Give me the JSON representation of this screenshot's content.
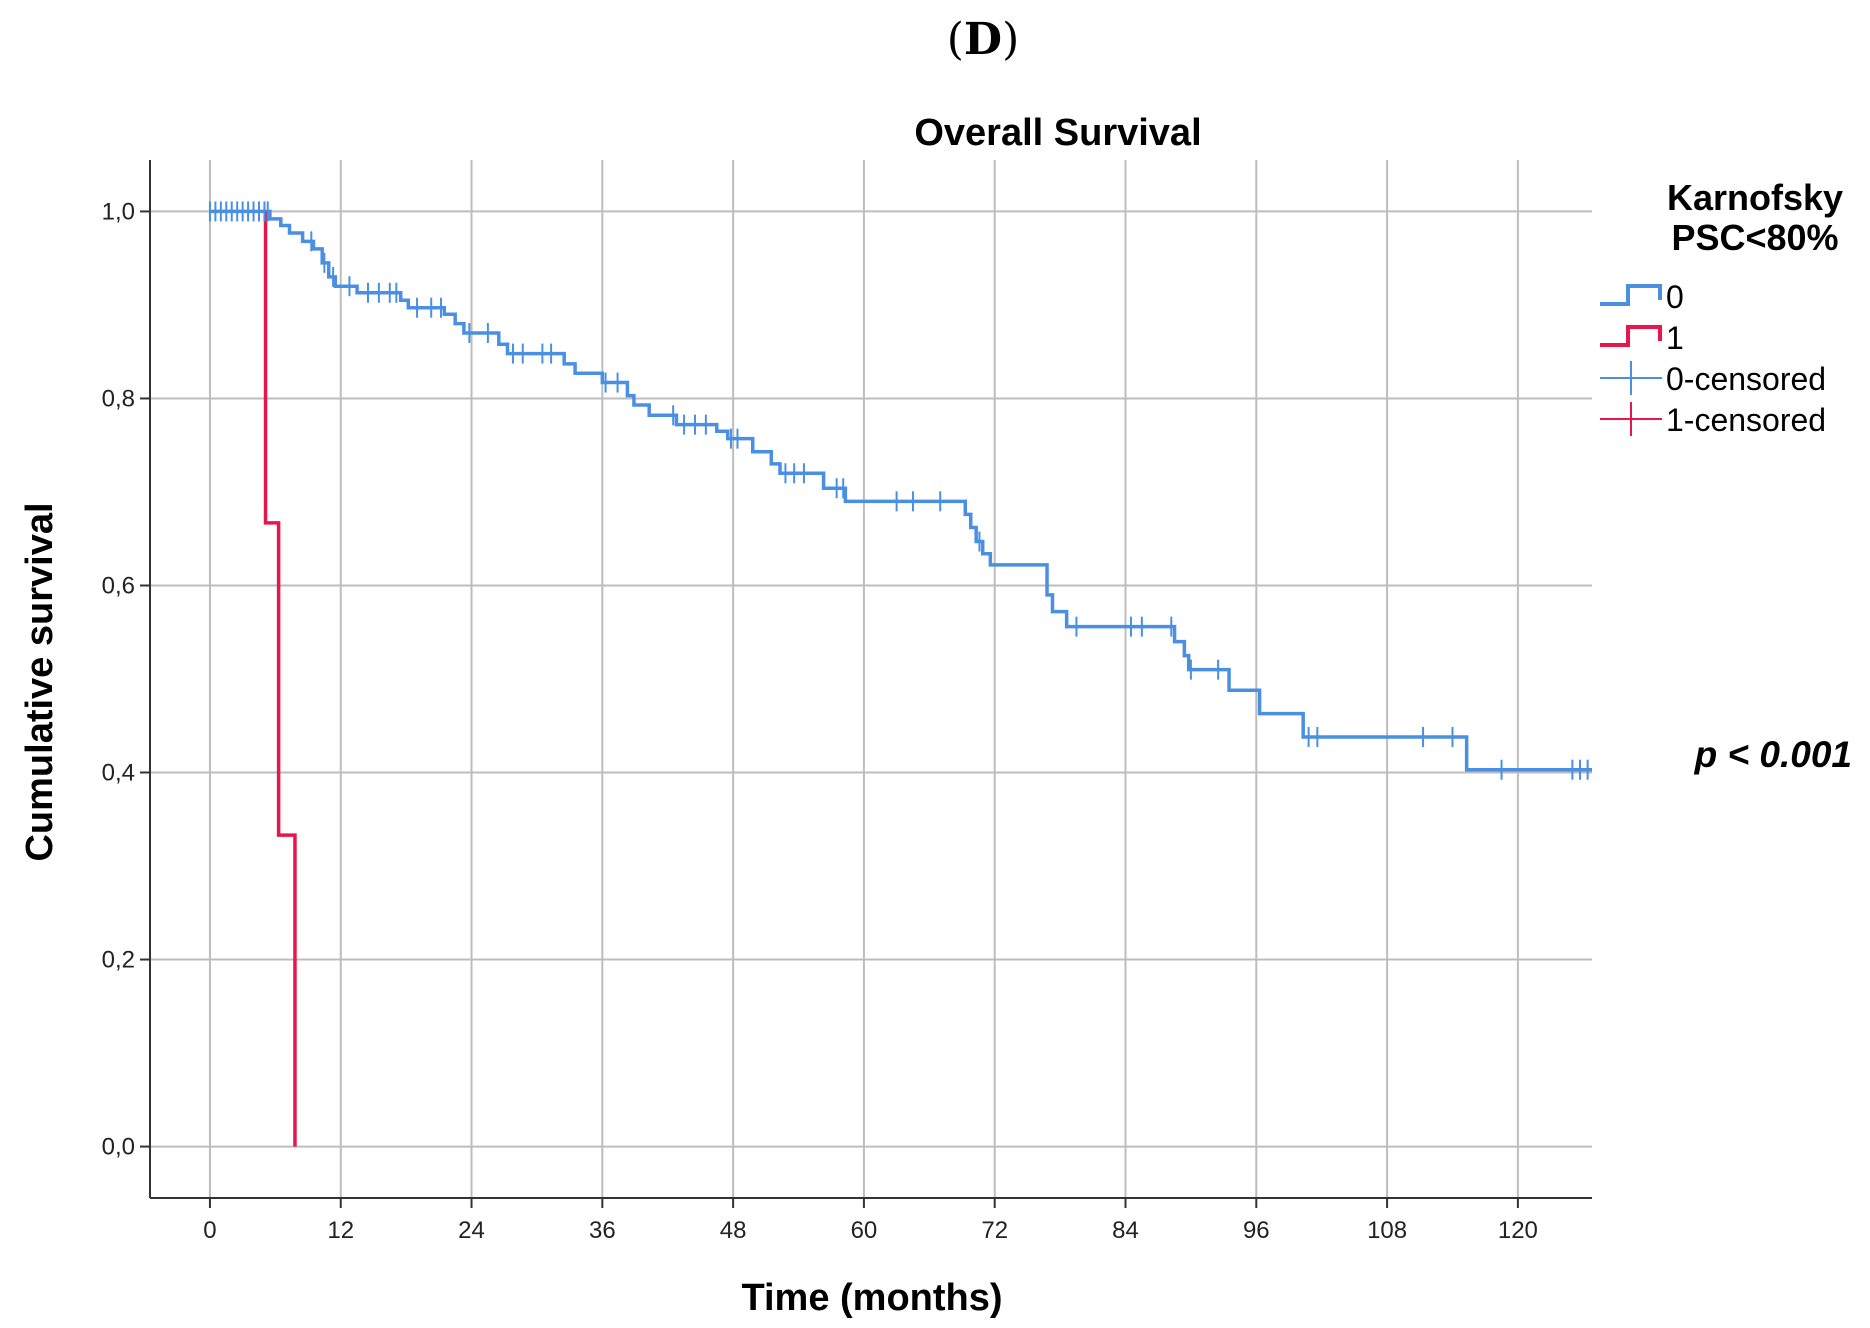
{
  "panel_label": {
    "open": "(",
    "letter": "D",
    "close": ")"
  },
  "chart_data": {
    "type": "line",
    "subtype": "kaplan-meier",
    "title": "Overall Survival",
    "xlabel": "Time (months)",
    "ylabel": "Cumulative survival",
    "xlim": [
      -5.5,
      126.8
    ],
    "ylim": [
      -0.055,
      1.055
    ],
    "xticks": [
      0,
      12,
      24,
      36,
      48,
      60,
      72,
      84,
      96,
      108,
      120
    ],
    "xtick_labels": [
      "0",
      "12",
      "24",
      "36",
      "48",
      "60",
      "72",
      "84",
      "96",
      "108",
      "120"
    ],
    "yticks": [
      0.0,
      0.2,
      0.4,
      0.6,
      0.8,
      1.0
    ],
    "ytick_labels": [
      "0,0",
      "0,2",
      "0,4",
      "0,6",
      "0,8",
      "1,0"
    ],
    "grid": true,
    "legend": {
      "title_lines": [
        "Karnofsky",
        "PSC<80%"
      ],
      "placement": "top-right-outside",
      "entries": [
        {
          "label": "0",
          "kind": "line",
          "color": "#4a90e2"
        },
        {
          "label": "1",
          "kind": "line",
          "color": "#e8174b"
        },
        {
          "label": "0-censored",
          "kind": "censor",
          "color": "#4a90e2"
        },
        {
          "label": "1-censored",
          "kind": "censor",
          "color": "#e8174b"
        }
      ]
    },
    "annotation": "p < 0.001",
    "series": [
      {
        "name": "0",
        "color": "#4a90e2",
        "steps": [
          [
            0,
            1.0
          ],
          [
            5.5,
            0.992
          ],
          [
            6.5,
            0.985
          ],
          [
            7.3,
            0.977
          ],
          [
            8.5,
            0.968
          ],
          [
            9.5,
            0.96
          ],
          [
            10.3,
            0.945
          ],
          [
            10.9,
            0.93
          ],
          [
            11.5,
            0.92
          ],
          [
            12.5,
            0.92
          ],
          [
            13.5,
            0.913
          ],
          [
            17.5,
            0.905
          ],
          [
            18.2,
            0.897
          ],
          [
            21.5,
            0.89
          ],
          [
            22.5,
            0.88
          ],
          [
            23.3,
            0.87
          ],
          [
            26.5,
            0.858
          ],
          [
            27.3,
            0.848
          ],
          [
            32.5,
            0.837
          ],
          [
            33.5,
            0.827
          ],
          [
            36,
            0.817
          ],
          [
            38.3,
            0.803
          ],
          [
            38.9,
            0.793
          ],
          [
            40.3,
            0.782
          ],
          [
            42.8,
            0.772
          ],
          [
            46.5,
            0.765
          ],
          [
            47.5,
            0.757
          ],
          [
            49.8,
            0.743
          ],
          [
            51.5,
            0.73
          ],
          [
            52.3,
            0.72
          ],
          [
            56.3,
            0.704
          ],
          [
            58.3,
            0.69
          ],
          [
            69.3,
            0.676
          ],
          [
            69.8,
            0.662
          ],
          [
            70.3,
            0.647
          ],
          [
            70.9,
            0.634
          ],
          [
            71.6,
            0.622
          ],
          [
            76.8,
            0.59
          ],
          [
            77.3,
            0.572
          ],
          [
            78.6,
            0.556
          ],
          [
            88.5,
            0.54
          ],
          [
            89.4,
            0.525
          ],
          [
            89.8,
            0.51
          ],
          [
            93.5,
            0.488
          ],
          [
            96.3,
            0.463
          ],
          [
            100.3,
            0.438
          ],
          [
            115.3,
            0.403
          ],
          [
            126.8,
            0.403
          ]
        ],
        "censored_times": [
          0,
          0.5,
          1,
          1.5,
          2,
          2.5,
          3,
          3.5,
          4,
          4.5,
          5,
          5.3,
          9.3,
          10.5,
          11.3,
          12.8,
          14.5,
          15.5,
          16.5,
          17.1,
          19,
          20.3,
          21.2,
          23.8,
          25.5,
          27.8,
          28.7,
          30.5,
          31.3,
          36.3,
          37.4,
          42.5,
          43.5,
          44.5,
          45.5,
          47.8,
          48.4,
          52.8,
          53.6,
          54.5,
          57.5,
          58.1,
          63,
          64.5,
          67,
          70.6,
          79.5,
          84.5,
          85.5,
          88.2,
          90,
          92.5,
          100.8,
          101.6,
          111.3,
          114,
          118.5,
          125,
          125.7,
          126.4
        ]
      },
      {
        "name": "1",
        "color": "#e8174b",
        "steps": [
          [
            5.1,
            1.0
          ],
          [
            5.1,
            0.667
          ],
          [
            6.3,
            0.667
          ],
          [
            6.3,
            0.333
          ],
          [
            7.8,
            0.333
          ],
          [
            7.8,
            0.0
          ]
        ],
        "censored_times": []
      }
    ]
  }
}
